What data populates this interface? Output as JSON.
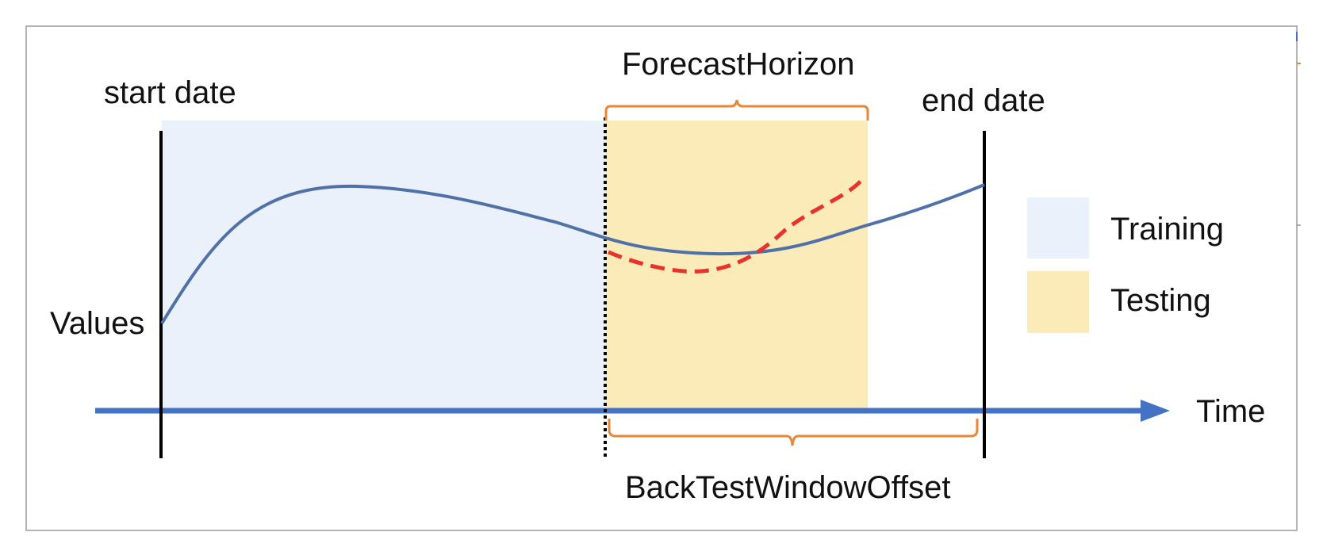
{
  "labels": {
    "start_date": "start date",
    "end_date": "end date",
    "values": "Values",
    "time": "Time",
    "forecast_horizon": "ForecastHorizon",
    "back_test_window_offset": "BackTestWindowOffset"
  },
  "legend": {
    "items": [
      {
        "label": "Training",
        "color": "#eaf1fb"
      },
      {
        "label": "Testing",
        "color": "#faebb8"
      }
    ]
  },
  "colors": {
    "frame": "#9a9a9a",
    "training_region": "#eaf1fb",
    "testing_region": "#faebb8",
    "time_axis": "#4472c4",
    "actual_curve": "#4f71a8",
    "forecast_curve": "#e8322b",
    "bracket": "#e8873a",
    "date_lines": "#000000"
  }
}
